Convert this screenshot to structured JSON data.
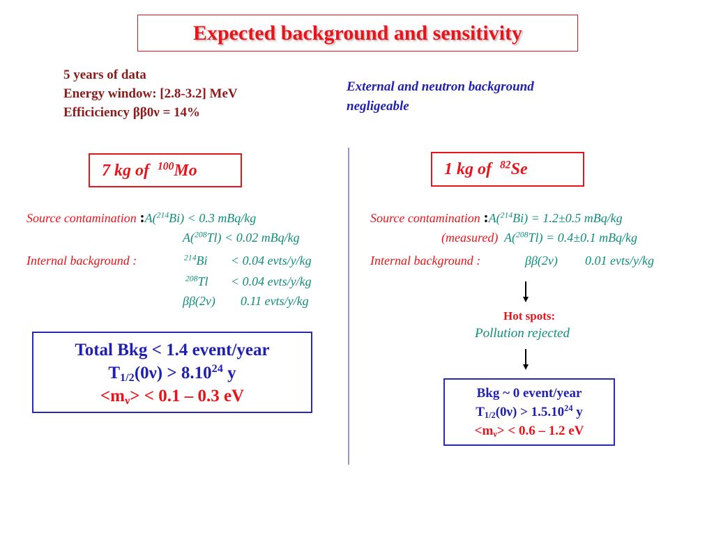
{
  "title": "Expected background and sensitivity",
  "info": {
    "line1": "5 years of data",
    "line2": "Energy window: [2.8-3.2] MeV",
    "line3": "Efficiciency ββ0ν = 14%"
  },
  "external_note": {
    "line1": "External and neutron background",
    "line2": "negligeable"
  },
  "mo": {
    "mass_label": "7 kg of",
    "isotope_mass": "100",
    "isotope": "Mo",
    "source_label": "Source contamination",
    "colon": ":",
    "activity_symbol": "A",
    "bi_mass": "214",
    "bi": "Bi",
    "bi_value": ") < 0.3   mBq/kg",
    "tl_mass": "208",
    "tl": "Tl",
    "tl_value": ") < 0.02 mBq/kg",
    "internal_label": "Internal background :",
    "int_bi": "< 0.04  evts/y/kg",
    "int_tl": "< 0.04  evts/y/kg",
    "bb2v": "ββ(2ν)",
    "int_bb2v": "0.11   evts/y/kg",
    "result": {
      "line1": "Total Bkg < 1.4 event/year",
      "t_half": "T",
      "t_half_sub": "1/2",
      "line2_mid": "(0ν) > 8.10",
      "line2_exp": "24",
      "line2_unit": " y",
      "mass_open": "<m",
      "nu": "ν",
      "line3_rest": "> < 0.1 – 0.3 eV"
    }
  },
  "se": {
    "mass_label": "1 kg of",
    "isotope_mass": "82",
    "isotope": "Se",
    "source_label": "Source contamination",
    "colon": ":",
    "activity_symbol": "A",
    "bi_mass": "214",
    "bi": "Bi",
    "bi_value": ") = 1.2±0.5 mBq/kg",
    "measured": "(measured)",
    "tl_mass": "208",
    "tl": "Tl",
    "tl_value": ") = 0.4±0.1 mBq/kg",
    "internal_label": "Internal background :",
    "bb2v": "ββ(2ν)",
    "int_bb2v": "0.01 evts/y/kg",
    "hot_spots": "Hot spots:",
    "pollution": "Pollution rejected",
    "result": {
      "line1": "Bkg ~ 0 event/year",
      "t_half": "T",
      "t_half_sub": "1/2",
      "line2_mid": "(0ν) > 1.5.10",
      "line2_exp": "24",
      "line2_unit": " y",
      "mass_open": "<m",
      "nu": "ν",
      "line3_rest": "> < 0.6 – 1.2 eV"
    }
  },
  "colors": {
    "title": "#e8141b",
    "info": "#8b1a1a",
    "note": "#1f1fb0",
    "labels": "#e8141b",
    "values": "#0f8c7c",
    "result": "#1f1fb0",
    "divider": "#8f9bd0"
  }
}
